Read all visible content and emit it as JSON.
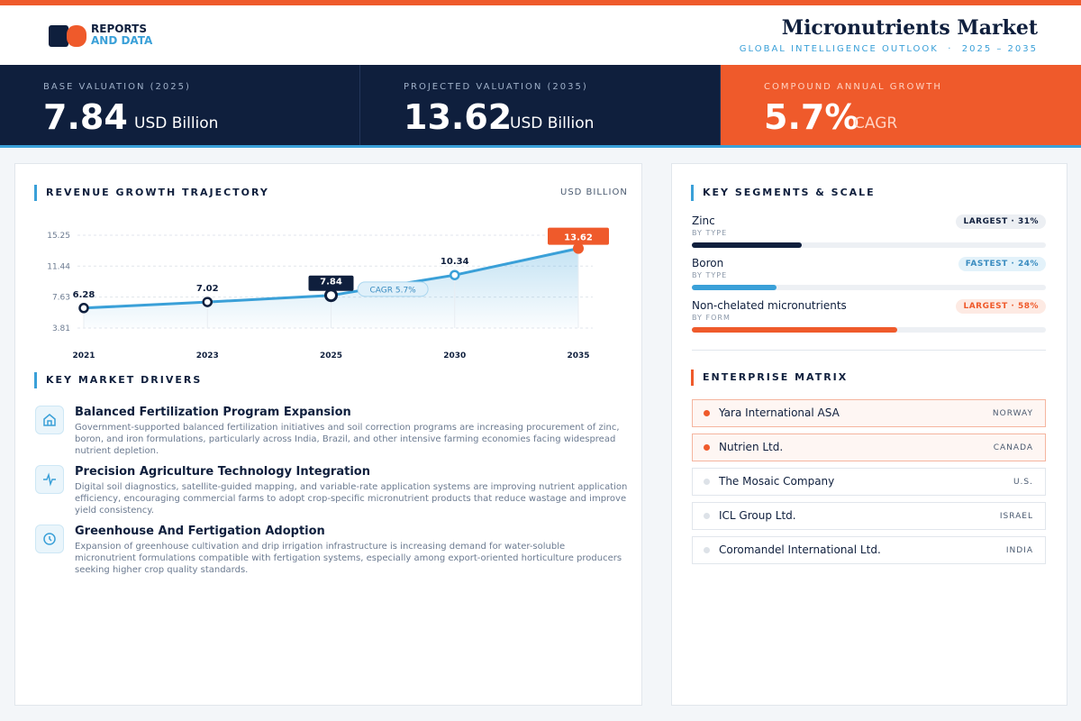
{
  "header": {
    "logo_top": "REPORTS",
    "logo_bottom": "AND DATA",
    "title": "Micronutrients Market",
    "subtitle": "GLOBAL INTELLIGENCE OUTLOOK  ·  2025 – 2035"
  },
  "kpis": [
    {
      "label": "BASE VALUATION (2025)",
      "value": "7.84",
      "unit": "USD Billion"
    },
    {
      "label": "PROJECTED VALUATION (2035)",
      "value": "13.62",
      "unit": "USD Billion"
    },
    {
      "label": "COMPOUND ANNUAL GROWTH",
      "value": "5.7%",
      "unit": "CAGR"
    }
  ],
  "chart_data": {
    "type": "line",
    "title": "REVENUE GROWTH TRAJECTORY",
    "unit_label": "USD BILLION",
    "categories": [
      "2021",
      "2023",
      "2025",
      "2030",
      "2035"
    ],
    "values": [
      6.28,
      7.02,
      7.84,
      10.34,
      13.62
    ],
    "color": "#3aa0d8",
    "ylim": [
      3.81,
      15.25
    ],
    "yticks": [
      15.25,
      11.44,
      7.63,
      3.81
    ],
    "grid": true,
    "annotation": "CAGR 5.7%"
  },
  "drivers": {
    "title": "KEY MARKET DRIVERS",
    "items": [
      {
        "title": "Balanced Fertilization Program Expansion",
        "text": "Government-supported balanced fertilization initiatives and soil correction programs are increasing procurement of zinc, boron, and iron formulations, particularly across India, Brazil, and other intensive farming economies facing widespread nutrient depletion."
      },
      {
        "title": "Precision Agriculture Technology Integration",
        "text": "Digital soil diagnostics, satellite-guided mapping, and variable-rate application systems are improving nutrient application efficiency, encouraging commercial farms to adopt crop-specific micronutrient products that reduce wastage and improve yield consistency."
      },
      {
        "title": "Greenhouse And Fertigation Adoption",
        "text": "Expansion of greenhouse cultivation and drip irrigation infrastructure is increasing demand for water-soluble micronutrient formulations compatible with fertigation systems, especially among export-oriented horticulture producers seeking higher crop quality standards."
      }
    ]
  },
  "segments": {
    "title": "KEY SEGMENTS & SCALE",
    "items": [
      {
        "name": "Zinc",
        "group": "BY TYPE",
        "badge": "LARGEST · 31%",
        "share": 31,
        "color": "#0f1f3d"
      },
      {
        "name": "Boron",
        "group": "BY TYPE",
        "badge": "FASTEST · 24%",
        "share": 24,
        "color": "#3aa0d8"
      },
      {
        "name": "Non-chelated micronutrients",
        "group": "BY FORM",
        "badge": "LARGEST · 58%",
        "share": 58,
        "color": "#ef5a2b"
      }
    ]
  },
  "enterprises": {
    "title": "ENTERPRISE MATRIX",
    "items": [
      {
        "name": "Yara International ASA",
        "country": "NORWAY",
        "highlighted": true
      },
      {
        "name": "Nutrien Ltd.",
        "country": "CANADA",
        "highlighted": true
      },
      {
        "name": "The Mosaic Company",
        "country": "U.S.",
        "highlighted": false
      },
      {
        "name": "ICL Group Ltd.",
        "country": "ISRAEL",
        "highlighted": false
      },
      {
        "name": "Coromandel International Ltd.",
        "country": "INDIA",
        "highlighted": false
      }
    ]
  }
}
